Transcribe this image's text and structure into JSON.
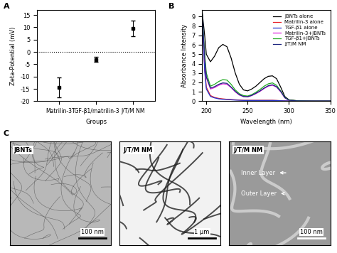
{
  "chart_data": [
    {
      "type": "scatter",
      "title": "A",
      "categories": [
        "Matrilin-3",
        "TGF-β1/matrilin-3",
        "J/T/M NM"
      ],
      "values": [
        -14.5,
        -3.0,
        9.5
      ],
      "errors": [
        4.0,
        1.0,
        3.2
      ],
      "xlabel": "Groups",
      "ylabel": "Zeta-Potential (mV)",
      "ylim": [
        -20,
        17
      ],
      "yticks": [
        -20,
        -15,
        -10,
        -5,
        0,
        5,
        10,
        15
      ],
      "reference_line": 0,
      "color": "#000000",
      "marker": "square"
    },
    {
      "type": "line",
      "title": "B",
      "xlabel": "Wavelength (nm)",
      "ylabel": "Absorbance Intensity",
      "x": [
        195,
        198,
        200,
        205,
        210,
        215,
        220,
        225,
        230,
        235,
        240,
        245,
        250,
        255,
        260,
        265,
        270,
        275,
        280,
        285,
        290,
        295,
        300,
        310,
        320,
        330,
        340,
        350
      ],
      "xlim": [
        195,
        350
      ],
      "xticks": [
        200,
        250,
        300,
        350
      ],
      "ylim": [
        0,
        9.7
      ],
      "yticks": [
        0,
        1,
        2,
        3,
        4,
        5,
        6,
        7,
        8,
        9
      ],
      "legend": "upper right",
      "series": [
        {
          "name": "JBNTs alone",
          "color": "#000000",
          "values": [
            9.5,
            7.0,
            5.0,
            4.2,
            4.8,
            5.7,
            6.05,
            5.8,
            4.6,
            3.0,
            1.8,
            1.2,
            1.1,
            1.3,
            1.6,
            2.0,
            2.4,
            2.65,
            2.7,
            2.4,
            1.5,
            0.5,
            0.15,
            0.05,
            0.03,
            0.02,
            0.02,
            0.02
          ]
        },
        {
          "name": "Matrilin-3 alone",
          "color": "#e8202a",
          "values": [
            9.0,
            3.5,
            1.5,
            0.6,
            0.4,
            0.3,
            0.25,
            0.2,
            0.18,
            0.15,
            0.12,
            0.1,
            0.1,
            0.1,
            0.1,
            0.1,
            0.1,
            0.1,
            0.1,
            0.08,
            0.06,
            0.04,
            0.03,
            0.02,
            0.02,
            0.02,
            0.02,
            0.02
          ]
        },
        {
          "name": "TGF-β1 alone",
          "color": "#2233cc",
          "values": [
            8.8,
            3.2,
            1.3,
            0.5,
            0.35,
            0.25,
            0.2,
            0.18,
            0.15,
            0.12,
            0.1,
            0.08,
            0.08,
            0.08,
            0.08,
            0.08,
            0.08,
            0.08,
            0.08,
            0.07,
            0.05,
            0.04,
            0.03,
            0.02,
            0.02,
            0.02,
            0.02,
            0.02
          ]
        },
        {
          "name": "Matrilin-3+JBNTs",
          "color": "#dd22dd",
          "values": [
            9.2,
            4.5,
            2.5,
            1.3,
            1.45,
            1.7,
            1.85,
            1.8,
            1.45,
            1.0,
            0.65,
            0.5,
            0.45,
            0.6,
            0.8,
            1.05,
            1.35,
            1.6,
            1.7,
            1.5,
            1.0,
            0.35,
            0.1,
            0.04,
            0.03,
            0.02,
            0.02,
            0.02
          ]
        },
        {
          "name": "TGF-β1+JBNTs",
          "color": "#22aa22",
          "values": [
            9.3,
            5.0,
            3.0,
            1.6,
            1.8,
            2.1,
            2.3,
            2.25,
            1.8,
            1.2,
            0.8,
            0.6,
            0.55,
            0.7,
            0.95,
            1.25,
            1.6,
            1.85,
            1.95,
            1.7,
            1.1,
            0.4,
            0.12,
            0.05,
            0.03,
            0.02,
            0.02,
            0.02
          ]
        },
        {
          "name": "J/T/M NM",
          "color": "#1a237e",
          "values": [
            9.3,
            4.6,
            2.6,
            1.4,
            1.55,
            1.8,
            1.95,
            1.9,
            1.5,
            1.05,
            0.7,
            0.5,
            0.48,
            0.62,
            0.85,
            1.1,
            1.4,
            1.65,
            1.75,
            1.55,
            1.05,
            0.38,
            0.1,
            0.04,
            0.03,
            0.02,
            0.02,
            0.02
          ]
        }
      ]
    }
  ],
  "images": {
    "title": "C",
    "panels": [
      {
        "label": "JBNTs",
        "scale_bar": "100 nm"
      },
      {
        "label": "J/T/M NM",
        "scale_bar": "1 μm"
      },
      {
        "label": "J/T/M NM",
        "scale_bar": "100 nm",
        "annotations": [
          "Inner Layer",
          "Outer Layer"
        ]
      }
    ]
  }
}
